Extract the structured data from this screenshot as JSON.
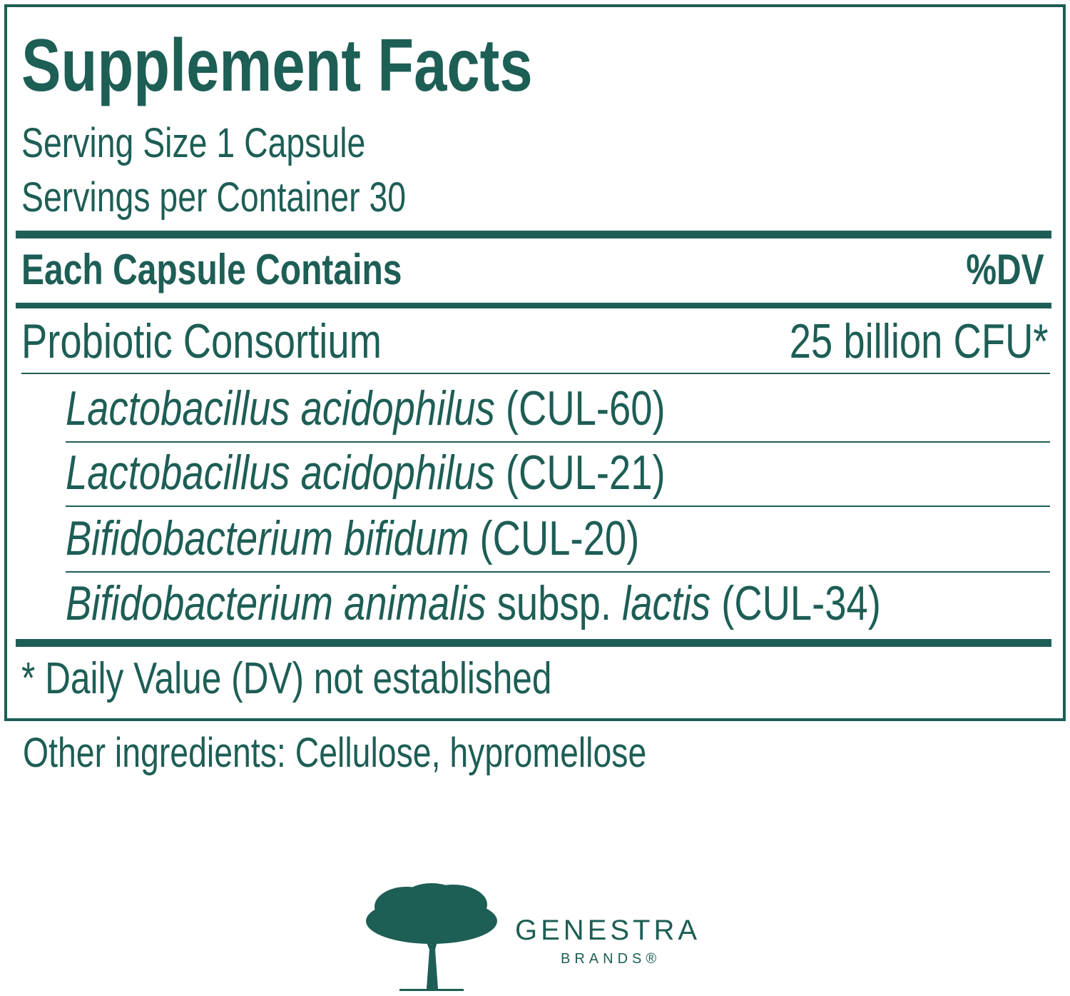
{
  "label": {
    "title": "Supplement Facts",
    "serving_size": "Serving Size 1 Capsule",
    "servings_per_container": "Servings per Container 30",
    "header": {
      "left": "Each Capsule Contains",
      "right": "%DV"
    },
    "main_row": {
      "name": "Probiotic Consortium",
      "amount": "25 billion CFU*"
    },
    "strains": [
      [
        {
          "text": "Lactobacillus acidophilus",
          "italic": true
        },
        {
          "text": "(CUL-60)",
          "italic": false
        }
      ],
      [
        {
          "text": "Lactobacillus acidophilus",
          "italic": true
        },
        {
          "text": "(CUL-21)",
          "italic": false
        }
      ],
      [
        {
          "text": "Bifidobacterium bifidum",
          "italic": true
        },
        {
          "text": "(CUL-20)",
          "italic": false
        }
      ],
      [
        {
          "text": "Bifidobacterium animalis",
          "italic": true
        },
        {
          "text": "subsp.",
          "italic": false
        },
        {
          "text": "lactis",
          "italic": true
        },
        {
          "text": "(CUL-34)",
          "italic": false
        }
      ]
    ],
    "footnote": "* Daily Value (DV) not established"
  },
  "other_ingredients": "Other ingredients: Cellulose, hypromellose",
  "logo": {
    "brand": "GENESTRA",
    "sub": "BRANDS®"
  }
}
